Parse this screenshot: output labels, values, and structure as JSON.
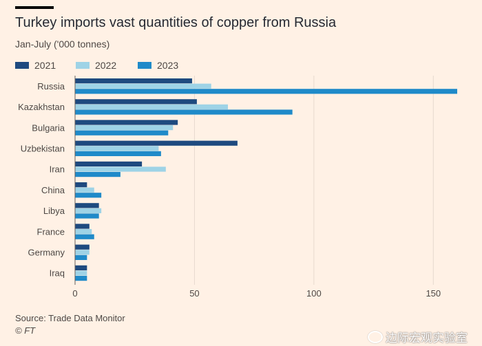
{
  "title": "Turkey imports vast quantities of copper from Russia",
  "subtitle": "Jan-July ('000 tonnes)",
  "source": "Source: Trade Data Monitor",
  "copyright": "© FT",
  "watermark": "边际宏观实验室",
  "colors": {
    "background": "#fff1e5",
    "s2021": "#1e4a7f",
    "s2022": "#9ed3e6",
    "s2023": "#1f8ac9",
    "grid": "#e6d9ce",
    "text": "#4d4845"
  },
  "chart_data": {
    "type": "bar",
    "orientation": "horizontal",
    "categories": [
      "Russia",
      "Kazakhstan",
      "Bulgaria",
      "Uzbekistan",
      "Iran",
      "China",
      "Libya",
      "France",
      "Germany",
      "Iraq"
    ],
    "series": [
      {
        "name": "2021",
        "values": [
          49,
          51,
          43,
          68,
          28,
          5,
          10,
          6,
          6,
          5
        ]
      },
      {
        "name": "2022",
        "values": [
          57,
          64,
          41,
          35,
          38,
          8,
          11,
          7,
          6,
          5
        ]
      },
      {
        "name": "2023",
        "values": [
          160,
          91,
          39,
          36,
          19,
          11,
          10,
          8,
          5,
          5
        ]
      }
    ],
    "xlim": [
      0,
      160
    ],
    "xticks": [
      0,
      50,
      100,
      150
    ],
    "grid": true,
    "legend_position": "top-left"
  }
}
